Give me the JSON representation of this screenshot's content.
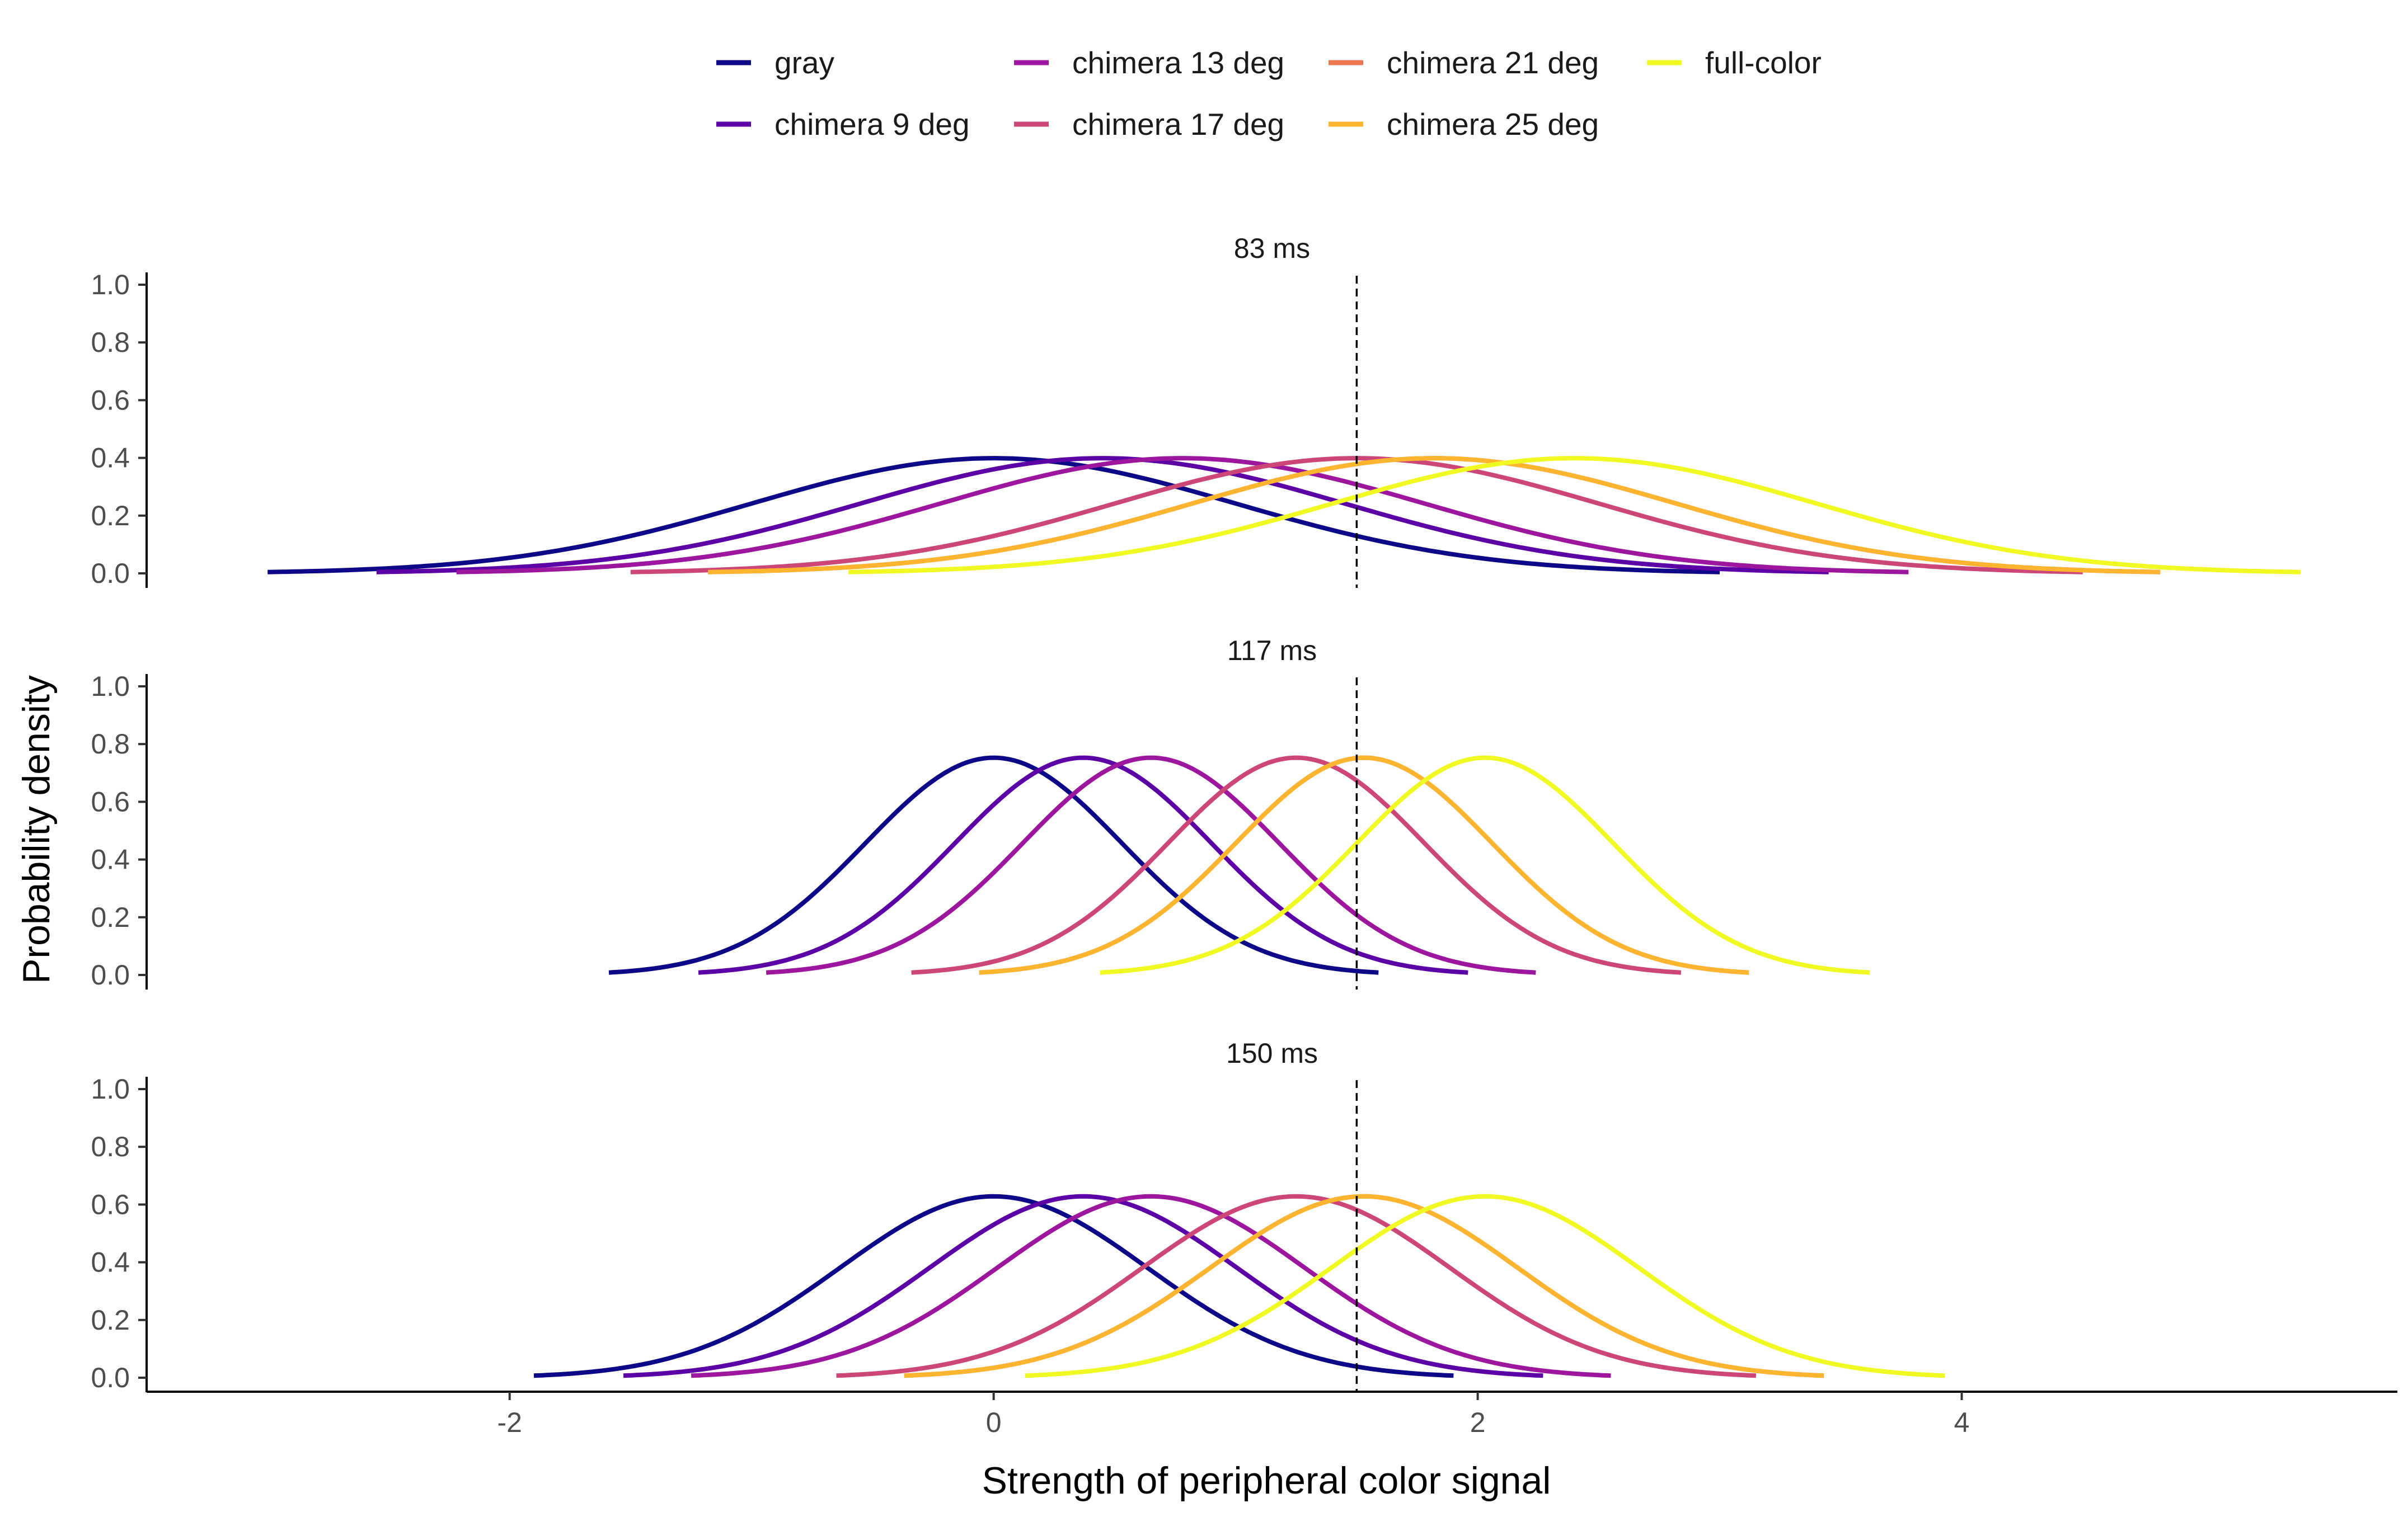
{
  "chart_data": {
    "type": "line",
    "xlabel": "Strength of peripheral color signal",
    "ylabel": "Probability density",
    "xlim": [
      -3.5,
      5.8
    ],
    "ylim": [
      0,
      1.0
    ],
    "x_ticks": [
      "-2",
      "0",
      "2",
      "4"
    ],
    "x_tick_values": [
      -2,
      0,
      2,
      4
    ],
    "y_ticks": [
      "0.0",
      "0.2",
      "0.4",
      "0.6",
      "0.8",
      "1.0"
    ],
    "y_tick_values": [
      0,
      0.2,
      0.4,
      0.6,
      0.8,
      1.0
    ],
    "reference_line_x": 1.5,
    "legend_position": "top",
    "series": [
      {
        "name": "gray",
        "color": "#0d0887"
      },
      {
        "name": "chimera 9 deg",
        "color": "#5c01a6"
      },
      {
        "name": "chimera 13 deg",
        "color": "#9c179e"
      },
      {
        "name": "chimera 17 deg",
        "color": "#cc4778"
      },
      {
        "name": "chimera 21 deg",
        "color": "#ed7953"
      },
      {
        "name": "chimera 25 deg",
        "color": "#fdb42f"
      },
      {
        "name": "full-color",
        "color": "#f0f921"
      }
    ],
    "panels": [
      {
        "title": "83 ms",
        "sd": 1.0,
        "curves": [
          {
            "series": "gray",
            "mean": 0.0,
            "x_range": [
              -3.0,
              3.0
            ]
          },
          {
            "series": "chimera 9 deg",
            "mean": 0.45,
            "x_range": [
              -2.55,
              3.45
            ]
          },
          {
            "series": "chimera 13 deg",
            "mean": 0.78,
            "x_range": [
              -2.22,
              3.78
            ]
          },
          {
            "series": "chimera 17 deg",
            "mean": 1.5,
            "x_range": [
              -1.5,
              4.5
            ]
          },
          {
            "series": "chimera 21 deg",
            "mean": 1.82,
            "x_range": [
              -1.18,
              4.82
            ]
          },
          {
            "series": "chimera 25 deg",
            "mean": 1.82,
            "x_range": [
              -1.18,
              4.82
            ]
          },
          {
            "series": "full-color",
            "mean": 2.4,
            "x_range": [
              -0.6,
              5.4
            ]
          }
        ]
      },
      {
        "title": "117 ms",
        "sd": 0.53,
        "curves": [
          {
            "series": "gray",
            "mean": 0.0,
            "x_range": [
              -1.59,
              1.59
            ]
          },
          {
            "series": "chimera 9 deg",
            "mean": 0.37,
            "x_range": [
              -1.22,
              1.96
            ]
          },
          {
            "series": "chimera 13 deg",
            "mean": 0.65,
            "x_range": [
              -0.94,
              2.24
            ]
          },
          {
            "series": "chimera 17 deg",
            "mean": 1.25,
            "x_range": [
              -0.34,
              2.84
            ]
          },
          {
            "series": "chimera 21 deg",
            "mean": 1.53,
            "x_range": [
              -0.06,
              3.12
            ]
          },
          {
            "series": "chimera 25 deg",
            "mean": 1.53,
            "x_range": [
              -0.06,
              3.12
            ]
          },
          {
            "series": "full-color",
            "mean": 2.03,
            "x_range": [
              0.44,
              3.62
            ]
          }
        ]
      },
      {
        "title": "150 ms",
        "sd": 0.635,
        "curves": [
          {
            "series": "gray",
            "mean": 0.0,
            "x_range": [
              -1.9,
              1.9
            ]
          },
          {
            "series": "chimera 9 deg",
            "mean": 0.37,
            "x_range": [
              -1.53,
              2.27
            ]
          },
          {
            "series": "chimera 13 deg",
            "mean": 0.65,
            "x_range": [
              -1.25,
              2.55
            ]
          },
          {
            "series": "chimera 17 deg",
            "mean": 1.25,
            "x_range": [
              -0.65,
              3.15
            ]
          },
          {
            "series": "chimera 21 deg",
            "mean": 1.53,
            "x_range": [
              -0.37,
              3.43
            ]
          },
          {
            "series": "chimera 25 deg",
            "mean": 1.53,
            "x_range": [
              -0.37,
              3.43
            ]
          },
          {
            "series": "full-color",
            "mean": 2.03,
            "x_range": [
              0.13,
              3.93
            ]
          }
        ]
      }
    ]
  }
}
